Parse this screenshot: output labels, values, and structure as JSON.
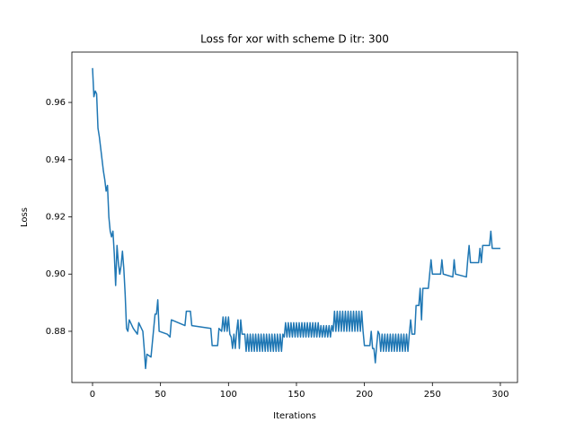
{
  "chart_data": {
    "type": "line",
    "title": "Loss for xor with scheme D itr: 300",
    "x_label": "Iterations",
    "y_label": "Loss",
    "x": [
      0,
      1,
      2,
      3,
      4,
      5,
      6,
      7,
      8,
      9,
      10,
      11,
      12,
      13,
      14,
      15,
      16,
      17,
      18,
      19,
      20,
      21,
      22,
      23,
      24,
      25,
      26,
      27,
      28,
      30,
      33,
      34,
      36,
      37,
      38,
      39,
      40,
      43,
      46,
      47,
      48,
      49,
      55,
      57,
      58,
      68,
      69,
      72,
      73,
      87,
      88,
      92,
      93,
      95,
      96,
      97,
      98,
      99,
      100,
      101,
      102,
      103,
      104,
      105,
      106,
      107,
      108,
      109,
      110,
      112,
      113,
      114,
      115,
      116,
      117,
      118,
      119,
      120,
      121,
      122,
      123,
      124,
      125,
      126,
      127,
      128,
      129,
      130,
      131,
      132,
      133,
      134,
      135,
      136,
      137,
      138,
      139,
      140,
      141,
      142,
      143,
      144,
      145,
      146,
      147,
      148,
      149,
      150,
      151,
      152,
      153,
      154,
      155,
      156,
      157,
      158,
      159,
      160,
      161,
      162,
      163,
      164,
      165,
      166,
      167,
      168,
      169,
      170,
      171,
      172,
      173,
      174,
      175,
      176,
      177,
      178,
      179,
      180,
      181,
      182,
      183,
      184,
      185,
      186,
      187,
      188,
      189,
      190,
      191,
      192,
      193,
      194,
      195,
      196,
      197,
      198,
      199,
      200,
      204,
      205,
      206,
      207,
      208,
      209,
      210,
      211,
      212,
      213,
      214,
      215,
      216,
      217,
      218,
      219,
      220,
      221,
      222,
      223,
      224,
      225,
      226,
      227,
      228,
      229,
      230,
      231,
      232,
      233,
      234,
      235,
      237,
      238,
      240,
      241,
      242,
      243,
      247,
      248,
      249,
      250,
      256,
      257,
      258,
      265,
      266,
      267,
      275,
      276,
      277,
      278,
      284,
      285,
      286,
      287,
      292,
      293,
      294,
      300
    ],
    "series": [
      {
        "name": "loss",
        "color": "#1f77b4",
        "values": [
          0.972,
          0.962,
          0.964,
          0.963,
          0.951,
          0.948,
          0.944,
          0.94,
          0.936,
          0.933,
          0.929,
          0.931,
          0.92,
          0.915,
          0.913,
          0.915,
          0.907,
          0.896,
          0.91,
          0.904,
          0.9,
          0.903,
          0.908,
          0.902,
          0.893,
          0.881,
          0.88,
          0.884,
          0.883,
          0.881,
          0.879,
          0.883,
          0.881,
          0.88,
          0.874,
          0.867,
          0.872,
          0.871,
          0.886,
          0.886,
          0.891,
          0.88,
          0.879,
          0.878,
          0.884,
          0.882,
          0.887,
          0.887,
          0.882,
          0.881,
          0.875,
          0.875,
          0.881,
          0.88,
          0.885,
          0.88,
          0.885,
          0.88,
          0.885,
          0.879,
          0.878,
          0.874,
          0.879,
          0.874,
          0.88,
          0.884,
          0.874,
          0.884,
          0.879,
          0.879,
          0.873,
          0.879,
          0.873,
          0.879,
          0.873,
          0.879,
          0.873,
          0.879,
          0.873,
          0.879,
          0.873,
          0.879,
          0.873,
          0.879,
          0.873,
          0.879,
          0.873,
          0.879,
          0.873,
          0.879,
          0.873,
          0.879,
          0.873,
          0.879,
          0.873,
          0.879,
          0.873,
          0.879,
          0.878,
          0.883,
          0.878,
          0.883,
          0.878,
          0.883,
          0.878,
          0.883,
          0.878,
          0.883,
          0.878,
          0.883,
          0.878,
          0.883,
          0.878,
          0.883,
          0.878,
          0.883,
          0.878,
          0.883,
          0.878,
          0.883,
          0.878,
          0.883,
          0.878,
          0.883,
          0.878,
          0.882,
          0.878,
          0.882,
          0.878,
          0.882,
          0.878,
          0.882,
          0.878,
          0.882,
          0.88,
          0.887,
          0.88,
          0.887,
          0.88,
          0.887,
          0.88,
          0.887,
          0.88,
          0.887,
          0.88,
          0.887,
          0.88,
          0.887,
          0.88,
          0.887,
          0.88,
          0.887,
          0.88,
          0.887,
          0.88,
          0.887,
          0.88,
          0.875,
          0.875,
          0.88,
          0.874,
          0.874,
          0.869,
          0.875,
          0.88,
          0.879,
          0.873,
          0.879,
          0.873,
          0.879,
          0.873,
          0.879,
          0.873,
          0.879,
          0.873,
          0.879,
          0.873,
          0.879,
          0.873,
          0.879,
          0.873,
          0.879,
          0.873,
          0.879,
          0.873,
          0.879,
          0.873,
          0.879,
          0.884,
          0.879,
          0.879,
          0.889,
          0.889,
          0.895,
          0.884,
          0.895,
          0.895,
          0.9,
          0.905,
          0.9,
          0.9,
          0.905,
          0.9,
          0.899,
          0.905,
          0.9,
          0.899,
          0.905,
          0.91,
          0.904,
          0.904,
          0.909,
          0.904,
          0.91,
          0.91,
          0.915,
          0.909,
          0.909
        ]
      }
    ],
    "xlim": [
      -15.2,
      312.6
    ],
    "ylim": [
      0.8621,
      0.9776
    ],
    "xticks": [
      0,
      50,
      100,
      150,
      200,
      250,
      300
    ],
    "yticks": [
      0.88,
      {
        "value": 0.9,
        "label": "0.90"
      },
      0.92,
      0.94,
      0.96
    ]
  }
}
